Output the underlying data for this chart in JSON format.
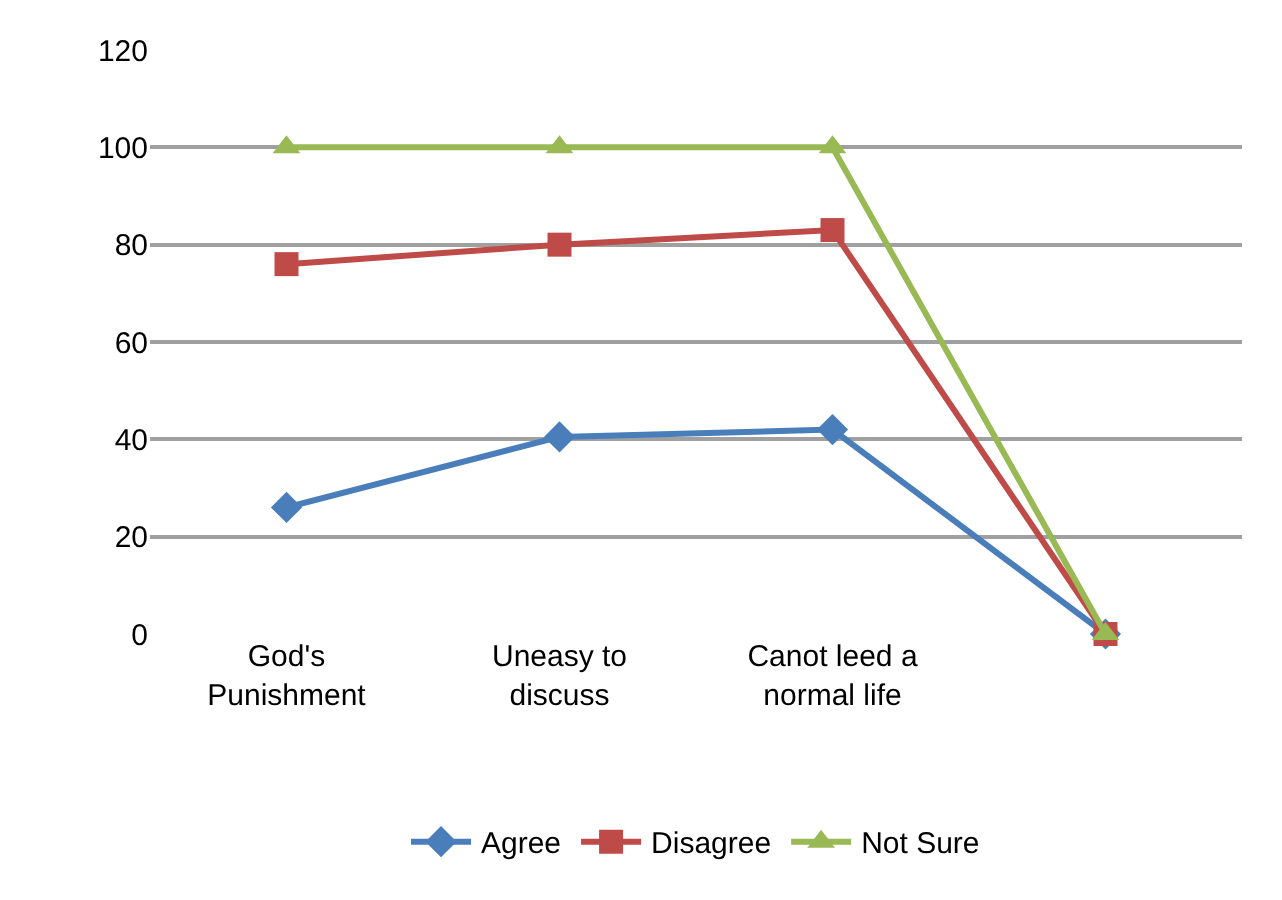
{
  "chart_data": {
    "type": "line",
    "categories": [
      "God's Punishment",
      "Uneasy to discuss",
      "Canot leed a normal life",
      null
    ],
    "series": [
      {
        "name": "Agree",
        "color": "#4a7ebb",
        "marker": "diamond",
        "values": [
          26,
          40.5,
          42,
          0
        ]
      },
      {
        "name": "Disagree",
        "color": "#be4b48",
        "marker": "square",
        "values": [
          76,
          80,
          83,
          0
        ]
      },
      {
        "name": "Not Sure",
        "color": "#98b954",
        "marker": "triangle",
        "values": [
          100,
          100,
          100,
          0
        ]
      }
    ],
    "ylim": [
      0,
      120
    ],
    "yticks": [
      0,
      20,
      40,
      60,
      80,
      100,
      120
    ],
    "grid": "y",
    "legend": "bottom"
  }
}
